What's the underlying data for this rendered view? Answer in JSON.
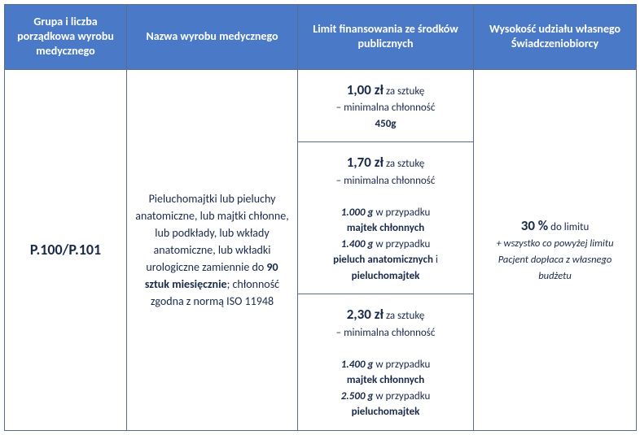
{
  "colors": {
    "header_bg": "#4a7ac7",
    "header_text": "#ffffff",
    "border": "#5b6b8a",
    "body_text": "#1a2a4a",
    "background": "#ffffff"
  },
  "headers": {
    "c1": "Grupa i liczba porządkowa wyrobu medycznego",
    "c2": "Nazwa wyrobu medycznego",
    "c3": "Limit finansowania ze środków publicznych",
    "c4": "Wysokość udziału własnego Świadczeniobiorcy"
  },
  "code": "P.100/P.101",
  "desc": {
    "pre": "Pieluchomajtki lub pieluchy anatomiczne, lub majtki chłonne, lub podkłady, lub wkłady anatomiczne, lub wkładki urologiczne zamiennie do ",
    "bold": "90 sztuk miesięcznie",
    "post": "; chłonność zgodna z normą ISO 11948"
  },
  "limits": [
    {
      "price": "1,00 zł",
      "per": "za sztukę",
      "min_label": "– minimalna chłonność",
      "simple_val": "450g"
    },
    {
      "price": "1,70 zł",
      "per": "za sztukę",
      "min_label": "– minimalna chłonność",
      "lines": [
        {
          "v": "1.000 g",
          "t1": "w przypadku",
          "t2": "majtek chłonnych"
        },
        {
          "v": "1.400 g",
          "t1": "w przypadku",
          "t2a": "pieluch anatomicznych",
          "conj": " i ",
          "t2b": "pieluchomajtek"
        }
      ]
    },
    {
      "price": "2,30 zł",
      "per": "za sztukę",
      "min_label": "– minimalna chłonność",
      "lines": [
        {
          "v": "1.400 g",
          "t1": "w przypadku",
          "t2": "majtek chłonnych"
        },
        {
          "v": "2.500 g",
          "t1": "w przypadku",
          "t2": "pieluchomajtek"
        }
      ]
    }
  ],
  "share": {
    "pct": "30 %",
    "rest": "do limitu",
    "note": "+ wszystko co powyżej limitu Pacjent dopłaca z własnego budżetu"
  }
}
